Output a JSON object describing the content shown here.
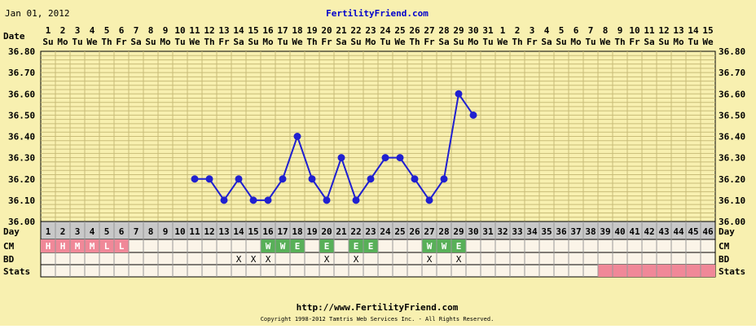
{
  "header": {
    "date_text": "Jan 01, 2012",
    "site_title": "FertilityFriend.com",
    "footer_url": "http://www.FertilityFriend.com",
    "copyright": "Copyright 1998-2012 Tamtris Web Services Inc. - All Rights Reserved."
  },
  "row_labels": {
    "date": "Date",
    "day": "Day",
    "cm": "CM",
    "bd": "BD",
    "stats": "Stats"
  },
  "colors": {
    "background": "#f8f0b0",
    "grid": "#c8bc78",
    "line": "#2020d0",
    "cm_h": "#f08898",
    "cm_w": "#58b058",
    "stats_fill": "#f08898",
    "title": "#0000cc"
  },
  "chart_data": {
    "type": "line",
    "xlabel": "",
    "ylabel": "",
    "ylim": [
      36.0,
      36.8
    ],
    "y_ticks": [
      "36.80",
      "36.70",
      "36.60",
      "36.50",
      "36.40",
      "36.30",
      "36.20",
      "36.10",
      "36.00"
    ],
    "date_numbers": [
      "1",
      "2",
      "3",
      "4",
      "5",
      "6",
      "7",
      "8",
      "9",
      "10",
      "11",
      "12",
      "13",
      "14",
      "15",
      "16",
      "17",
      "18",
      "19",
      "20",
      "21",
      "22",
      "23",
      "24",
      "25",
      "26",
      "27",
      "28",
      "29",
      "30",
      "31",
      "1",
      "2",
      "3",
      "4",
      "5",
      "6",
      "7",
      "8",
      "9",
      "10",
      "11",
      "12",
      "13",
      "14",
      "15"
    ],
    "weekdays": [
      "Su",
      "Mo",
      "Tu",
      "We",
      "Th",
      "Fr",
      "Sa",
      "Su",
      "Mo",
      "Tu",
      "We",
      "Th",
      "Fr",
      "Sa",
      "Su",
      "Mo",
      "Tu",
      "We",
      "Th",
      "Fr",
      "Sa",
      "Su",
      "Mo",
      "Tu",
      "We",
      "Th",
      "Fr",
      "Sa",
      "Su",
      "Mo",
      "Tu",
      "We",
      "Th",
      "Fr",
      "Sa",
      "Su",
      "Mo",
      "Tu",
      "We",
      "Th",
      "Fr",
      "Sa",
      "Su",
      "Mo",
      "Tu",
      "We"
    ],
    "cycle_days": [
      "1",
      "2",
      "3",
      "4",
      "5",
      "6",
      "7",
      "8",
      "9",
      "10",
      "11",
      "12",
      "13",
      "14",
      "15",
      "16",
      "17",
      "18",
      "19",
      "20",
      "21",
      "22",
      "23",
      "24",
      "25",
      "26",
      "27",
      "28",
      "29",
      "30",
      "31",
      "32",
      "33",
      "34",
      "35",
      "36",
      "37",
      "38",
      "39",
      "40",
      "41",
      "42",
      "43",
      "44",
      "45",
      "46"
    ],
    "series": [
      {
        "x": [
          11,
          12,
          13,
          14,
          15,
          16,
          17,
          18,
          19,
          20,
          21,
          22,
          23,
          24,
          25,
          26,
          27,
          28,
          29,
          30
        ],
        "values": [
          36.2,
          36.2,
          36.1,
          36.2,
          36.1,
          36.1,
          36.2,
          36.4,
          36.2,
          36.1,
          36.3,
          36.1,
          36.2,
          36.3,
          36.3,
          36.2,
          36.1,
          36.2,
          36.6,
          36.5
        ]
      }
    ],
    "cm": [
      {
        "day": 1,
        "code": "H"
      },
      {
        "day": 2,
        "code": "H"
      },
      {
        "day": 3,
        "code": "M"
      },
      {
        "day": 4,
        "code": "M"
      },
      {
        "day": 5,
        "code": "L"
      },
      {
        "day": 6,
        "code": "L"
      },
      {
        "day": 16,
        "code": "W"
      },
      {
        "day": 17,
        "code": "W"
      },
      {
        "day": 18,
        "code": "E"
      },
      {
        "day": 20,
        "code": "E"
      },
      {
        "day": 22,
        "code": "E"
      },
      {
        "day": 23,
        "code": "E"
      },
      {
        "day": 27,
        "code": "W"
      },
      {
        "day": 28,
        "code": "W"
      },
      {
        "day": 29,
        "code": "E"
      }
    ],
    "bd": {
      "days": [
        14,
        15,
        16,
        20,
        22,
        27,
        29
      ],
      "mark": "X"
    },
    "stats_days": [
      39,
      40,
      41,
      42,
      43,
      44,
      45,
      46
    ],
    "grid": true
  }
}
